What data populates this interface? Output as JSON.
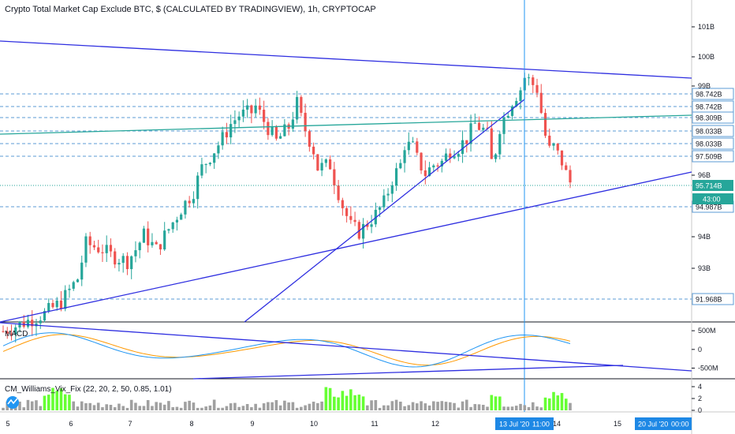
{
  "header": {
    "title": "Crypto Total Market Cap Exclude BTC, $ (CALCULATED BY TRADINGVIEW), 1h, CRYPTOCAP"
  },
  "colors": {
    "up": "#26a69a",
    "down": "#ef5350",
    "trendline": "#2e2ee0",
    "teal_line": "#26a69a",
    "dashed_level": "#5b9bd5",
    "crosshair": "#2196f3",
    "macd_line": "#2196f3",
    "signal_line": "#ff9800",
    "vix_high": "#66ff33",
    "vix_normal": "#a0a0a0",
    "price_tag_bg": "#26a69a",
    "crosshair_tag_bg": "#1e88e5"
  },
  "chart_data": [
    {
      "type": "candlestick",
      "pane": "price",
      "y_ticks": [
        "101B",
        "100B",
        "99B",
        "96B",
        "94B",
        "93B"
      ],
      "level_labels": [
        "98.742B",
        "98.742B",
        "98.309B",
        "98.033B",
        "98.033B",
        "97.509B",
        "94.987B",
        "91.968B"
      ],
      "current_price_label": "95.714B",
      "countdown_label": "43:00",
      "x_tick_labels": [
        "5",
        "6",
        "7",
        "8",
        "9",
        "10",
        "11",
        "12",
        "14",
        "15"
      ],
      "crosshair_date_label": "13 Jul '20",
      "crosshair_time_label": "11:00",
      "range_end_label": "20 Jul '20",
      "range_end_time_label": "00:00",
      "close_path": [
        [
          0,
          90.6
        ],
        [
          10,
          91.2
        ],
        [
          14,
          91.6
        ],
        [
          18,
          92.4
        ],
        [
          20,
          93.6
        ],
        [
          24,
          93.4
        ],
        [
          26,
          93.2
        ],
        [
          30,
          93.0
        ],
        [
          32,
          93.4
        ],
        [
          34,
          93.9
        ],
        [
          37,
          93.4
        ],
        [
          40,
          94.1
        ],
        [
          43,
          94.8
        ],
        [
          46,
          95.4
        ],
        [
          48,
          96.2
        ],
        [
          50,
          96.6
        ],
        [
          53,
          97.2
        ],
        [
          55,
          97.7
        ],
        [
          57,
          98.0
        ],
        [
          60,
          98.1
        ],
        [
          61,
          98.3
        ],
        [
          63,
          97.8
        ],
        [
          66,
          97.1
        ],
        [
          69,
          97.6
        ],
        [
          71,
          98.4
        ],
        [
          72,
          97.9
        ],
        [
          73,
          97.5
        ],
        [
          75,
          96.8
        ],
        [
          76,
          96.2
        ],
        [
          79,
          96.3
        ],
        [
          80,
          95.8
        ],
        [
          82,
          94.9
        ],
        [
          84,
          94.2
        ],
        [
          86,
          94.0
        ],
        [
          88,
          94.3
        ],
        [
          90,
          94.6
        ],
        [
          92,
          95.0
        ],
        [
          94,
          95.8
        ],
        [
          96,
          96.3
        ],
        [
          97,
          97.0
        ],
        [
          99,
          96.9
        ],
        [
          100,
          96.5
        ],
        [
          102,
          96.0
        ],
        [
          104,
          96.3
        ],
        [
          106,
          96.4
        ],
        [
          108,
          96.8
        ],
        [
          110,
          96.9
        ],
        [
          112,
          97.2
        ],
        [
          114,
          97.7
        ],
        [
          116,
          97.5
        ],
        [
          117,
          97.3
        ],
        [
          118,
          96.4
        ],
        [
          119,
          96.8
        ],
        [
          120,
          97.6
        ],
        [
          122,
          98.2
        ],
        [
          123,
          98.5
        ],
        [
          125,
          98.9
        ],
        [
          126,
          99.3
        ],
        [
          127,
          99.2
        ],
        [
          129,
          98.9
        ],
        [
          130,
          98.1
        ],
        [
          131,
          97.3
        ],
        [
          132,
          96.8
        ],
        [
          133,
          96.9
        ],
        [
          135,
          96.4
        ],
        [
          136,
          96.0
        ],
        [
          137,
          95.7
        ]
      ],
      "trendlines": "rendered from script"
    },
    {
      "type": "line",
      "pane": "MACD",
      "label": "MACD",
      "y_ticks": [
        "500M",
        "0",
        "-500M"
      ],
      "ylim": [
        -700,
        650
      ]
    },
    {
      "type": "bar",
      "pane": "CM_Williams_Vix_Fix",
      "label": "CM_Williams_Vix_Fix (22, 20, 2, 50, 0.85, 1.01)",
      "y_ticks": [
        "4",
        "2",
        "0"
      ],
      "ylim": [
        0,
        4.8
      ]
    }
  ]
}
